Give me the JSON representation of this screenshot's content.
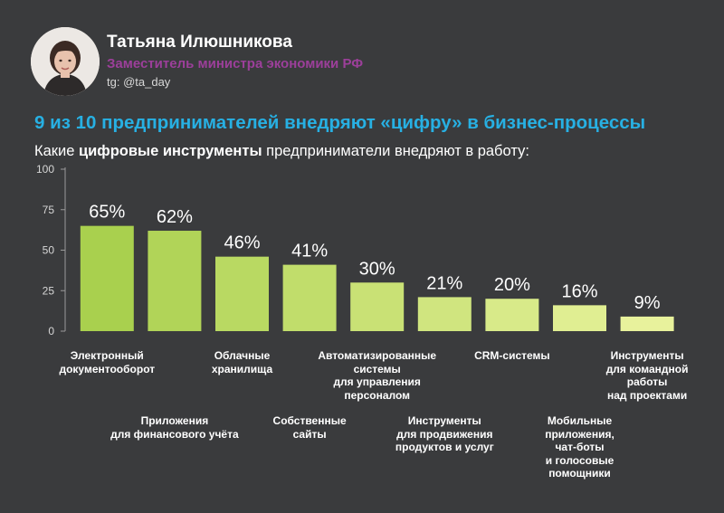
{
  "header": {
    "name": "Татьяна Илюшникова",
    "role": "Заместитель министра экономики РФ",
    "handle": "tg: @ta_day"
  },
  "headline": "9 из 10 предпринимателей внедряют «цифру» в бизнес-процессы",
  "subhead": {
    "prefix": "Какие ",
    "bold": "цифровые инструменты",
    "suffix": " предприниматели внедряют в работу:"
  },
  "colors": {
    "background": "#3a3b3d",
    "headline": "#27b0e3",
    "role": "#9c3f9a",
    "bar_start": "#a9d04e",
    "bar_end": "#e8f29c"
  },
  "chart_data": {
    "type": "bar",
    "title": "",
    "xlabel": "",
    "ylabel": "",
    "ylim": [
      0,
      100
    ],
    "yticks": [
      0,
      25,
      50,
      75,
      100
    ],
    "grid": false,
    "categories": [
      [
        "Электронный",
        "документооборот"
      ],
      [
        "Приложения",
        "для финансового учёта"
      ],
      [
        "Облачные",
        "хранилища"
      ],
      [
        "Собственные",
        "сайты"
      ],
      [
        "Автоматизированные",
        "системы",
        "для управления",
        "персоналом"
      ],
      [
        "Инструменты",
        "для продвижения",
        "продуктов и услуг"
      ],
      [
        "CRM-системы"
      ],
      [
        "Мобильные",
        "приложения,",
        "чат-боты",
        "и голосовые",
        "помощники"
      ],
      [
        "Инструменты",
        "для командной",
        "работы",
        "над проектами"
      ]
    ],
    "values": [
      65,
      62,
      46,
      41,
      30,
      21,
      20,
      16,
      9
    ],
    "value_labels": [
      "65%",
      "62%",
      "46%",
      "41%",
      "30%",
      "21%",
      "20%",
      "16%",
      "9%"
    ]
  }
}
